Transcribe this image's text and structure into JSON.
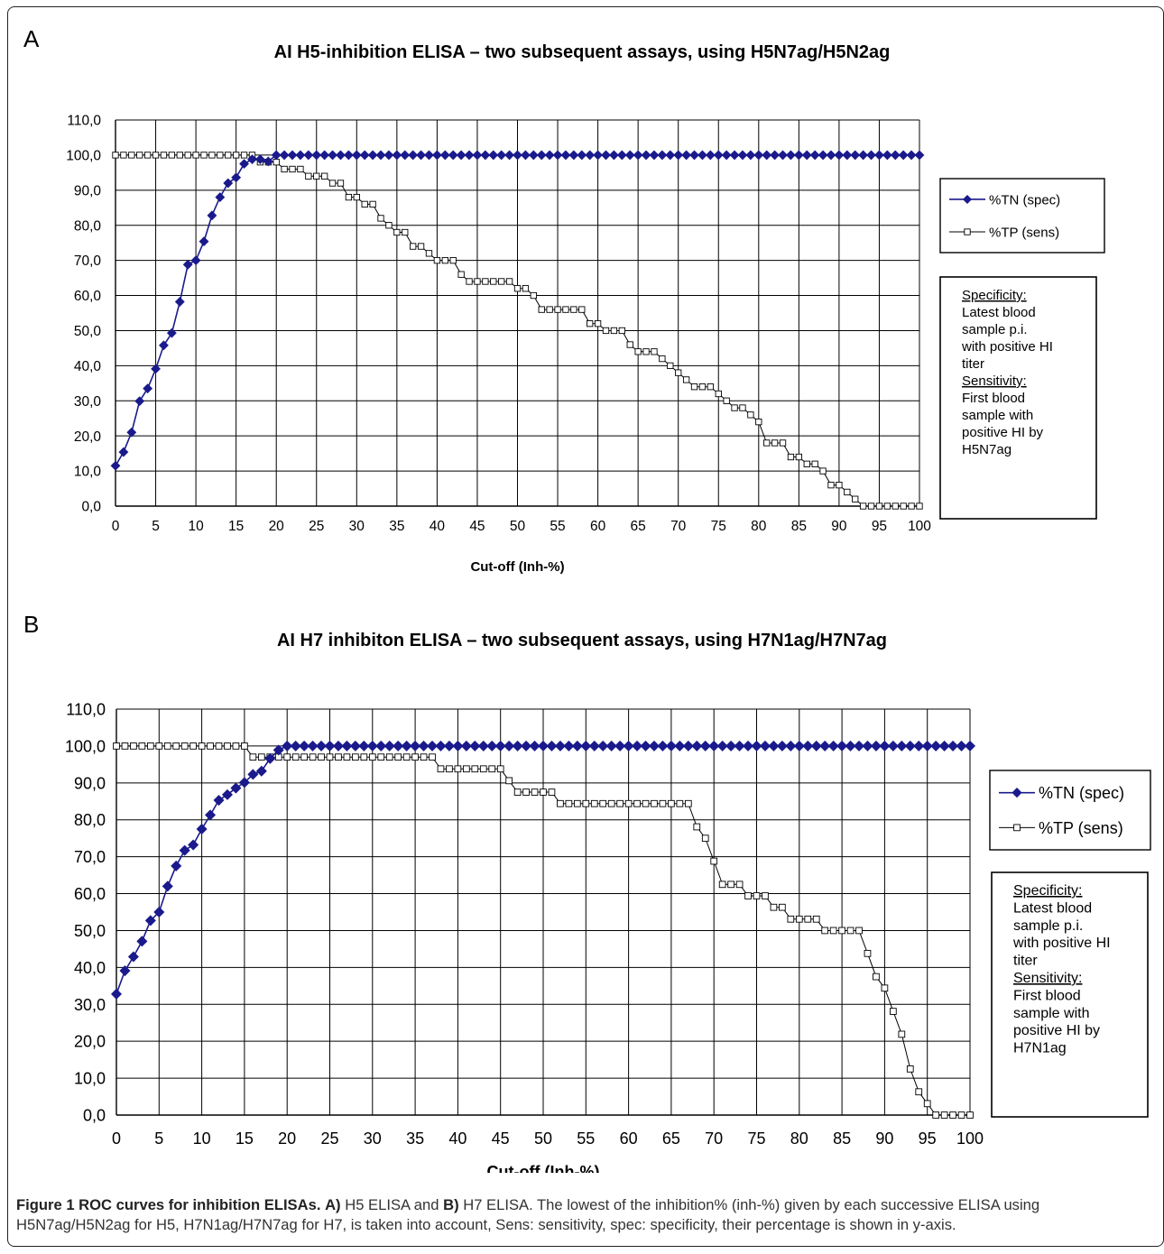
{
  "colors": {
    "tn": "#1a1a8c",
    "tp": "#000000",
    "grid": "#000000",
    "caption_text": "#333333"
  },
  "panels": [
    {
      "letter": "A"
    },
    {
      "letter": "B"
    }
  ],
  "chart_data": [
    {
      "type": "line",
      "title": "AI H5-inhibition ELISA – two subsequent assays, using H5N7ag/H5N2ag",
      "xlabel": "Cut-off (Inh-%)",
      "ylabel": "",
      "xlim": [
        0,
        100
      ],
      "ylim": [
        0,
        110
      ],
      "x_ticks": [
        "0",
        "5",
        "10",
        "15",
        "20",
        "25",
        "30",
        "35",
        "40",
        "45",
        "50",
        "55",
        "60",
        "65",
        "70",
        "75",
        "80",
        "85",
        "90",
        "95",
        "100"
      ],
      "y_ticks": [
        "0,0",
        "10,0",
        "20,0",
        "30,0",
        "40,0",
        "50,0",
        "60,0",
        "70,0",
        "80,0",
        "90,0",
        "100,0",
        "110,0"
      ],
      "grid": true,
      "legend_position": "right",
      "series": [
        {
          "name": "%TN (spec)",
          "marker": "filled-diamond",
          "x": [
            0,
            1,
            2,
            3,
            4,
            5,
            6,
            7,
            8,
            9,
            10,
            11,
            12,
            13,
            14,
            15,
            16,
            17,
            18,
            19,
            20
          ],
          "y": [
            11.5,
            15.4,
            21,
            29.9,
            33.5,
            39.1,
            45.8,
            49.3,
            58.2,
            68.8,
            70,
            75.4,
            82.8,
            88,
            92,
            93.6,
            97.5,
            98.8,
            98.8,
            98.2,
            100
          ],
          "continues_at": 100,
          "continues_to": 100
        },
        {
          "name": "%TP (sens)",
          "marker": "open-square",
          "x": [
            0,
            1,
            2,
            3,
            4,
            5,
            6,
            7,
            8,
            9,
            10,
            11,
            12,
            13,
            14,
            15,
            16,
            17,
            18,
            19,
            20,
            21,
            22,
            23,
            24,
            25,
            26,
            27,
            28,
            29,
            30,
            31,
            32,
            33,
            34,
            35,
            36,
            37,
            38,
            39,
            40,
            41,
            42,
            43,
            44,
            45,
            46,
            47,
            48,
            49,
            50,
            51,
            52,
            53,
            54,
            55,
            56,
            57,
            58,
            59,
            60,
            61,
            62,
            63,
            64,
            65,
            66,
            67,
            68,
            69,
            70,
            71,
            72,
            73,
            74,
            75,
            76,
            77,
            78,
            79,
            80,
            81,
            82,
            83,
            84,
            85,
            86,
            87,
            88,
            89,
            90,
            91,
            92,
            93,
            94,
            95,
            96,
            97,
            98,
            99,
            100
          ],
          "y": [
            100,
            100,
            100,
            100,
            100,
            100,
            100,
            100,
            100,
            100,
            100,
            100,
            100,
            100,
            100,
            100,
            100,
            100,
            98,
            98,
            98,
            96,
            96,
            96,
            94,
            94,
            94,
            92,
            92,
            88,
            88,
            86,
            86,
            82,
            80,
            78,
            78,
            74,
            74,
            72,
            70,
            70,
            70,
            66,
            64,
            64,
            64,
            64,
            64,
            64,
            62,
            62,
            60,
            56,
            56,
            56,
            56,
            56,
            56,
            52,
            52,
            50,
            50,
            50,
            46,
            44,
            44,
            44,
            42,
            40,
            38,
            36,
            34,
            34,
            34,
            32,
            30,
            28,
            28,
            26,
            24,
            18,
            18,
            18,
            14,
            14,
            12,
            12,
            10,
            6,
            6,
            4,
            2,
            0,
            0,
            0,
            0,
            0,
            0,
            0,
            0
          ]
        }
      ],
      "annotation": {
        "spec_head": "Specificity:",
        "spec_lines": [
          "Latest blood",
          "sample p.i.",
          "with positive HI",
          "titer"
        ],
        "sens_head": "Sensitivity:",
        "sens_lines": [
          "First blood",
          "sample with",
          "positive HI by",
          "H5N7ag"
        ]
      }
    },
    {
      "type": "line",
      "title": "AI H7 inhibiton ELISA – two subsequent assays, using H7N1ag/H7N7ag",
      "xlabel": "Cut-off (Inh-%)",
      "ylabel": "",
      "xlim": [
        0,
        100
      ],
      "ylim": [
        0,
        110
      ],
      "x_ticks": [
        "0",
        "5",
        "10",
        "15",
        "20",
        "25",
        "30",
        "35",
        "40",
        "45",
        "50",
        "55",
        "60",
        "65",
        "70",
        "75",
        "80",
        "85",
        "90",
        "95",
        "100"
      ],
      "y_ticks": [
        "0,0",
        "10,0",
        "20,0",
        "30,0",
        "40,0",
        "50,0",
        "60,0",
        "70,0",
        "80,0",
        "90,0",
        "100,0",
        "110,0"
      ],
      "grid": true,
      "legend_position": "right",
      "series": [
        {
          "name": "%TN (spec)",
          "marker": "filled-diamond",
          "x": [
            0,
            1,
            2,
            3,
            4,
            5,
            6,
            7,
            8,
            9,
            10,
            11,
            12,
            13,
            14,
            15,
            16,
            17,
            18,
            19,
            20
          ],
          "y": [
            32.8,
            39.1,
            42.9,
            47.1,
            52.7,
            55,
            62,
            67.5,
            71.7,
            73.2,
            77.5,
            81.3,
            85.3,
            86.8,
            88.6,
            90.1,
            92.3,
            93.2,
            96.6,
            98.9,
            100
          ],
          "continues_at": 100,
          "continues_to": 100
        },
        {
          "name": "%TP (sens)",
          "marker": "open-square",
          "x": [
            0,
            1,
            2,
            3,
            4,
            5,
            6,
            7,
            8,
            9,
            10,
            11,
            12,
            13,
            14,
            15,
            16,
            17,
            18,
            19,
            20,
            21,
            22,
            23,
            24,
            25,
            26,
            27,
            28,
            29,
            30,
            31,
            32,
            33,
            34,
            35,
            36,
            37,
            38,
            39,
            40,
            41,
            42,
            43,
            44,
            45,
            46,
            47,
            48,
            49,
            50,
            51,
            52,
            53,
            54,
            55,
            56,
            57,
            58,
            59,
            60,
            61,
            62,
            63,
            64,
            65,
            66,
            67,
            68,
            69,
            70,
            71,
            72,
            73,
            74,
            75,
            76,
            77,
            78,
            79,
            80,
            81,
            82,
            83,
            84,
            85,
            86,
            87,
            88,
            89,
            90,
            91,
            92,
            93,
            94,
            95,
            96,
            97,
            98,
            99,
            100
          ],
          "y": [
            100,
            100,
            100,
            100,
            100,
            100,
            100,
            100,
            100,
            100,
            100,
            100,
            100,
            100,
            100,
            100,
            97,
            97,
            97,
            97,
            97,
            97,
            97,
            97,
            97,
            97,
            97,
            97,
            97,
            97,
            97,
            97,
            97,
            97,
            97,
            97,
            97,
            97,
            93.8,
            93.8,
            93.8,
            93.8,
            93.8,
            93.8,
            93.8,
            93.8,
            90.6,
            87.5,
            87.5,
            87.5,
            87.5,
            87.5,
            84.4,
            84.4,
            84.4,
            84.4,
            84.4,
            84.4,
            84.4,
            84.4,
            84.4,
            84.4,
            84.4,
            84.4,
            84.4,
            84.4,
            84.4,
            84.4,
            78.1,
            75,
            68.8,
            62.5,
            62.5,
            62.5,
            59.4,
            59.4,
            59.4,
            56.3,
            56.3,
            53.1,
            53.1,
            53.1,
            53.1,
            50,
            50,
            50,
            50,
            50,
            43.8,
            37.5,
            34.4,
            28.1,
            21.9,
            12.5,
            6.3,
            3.1,
            0,
            0,
            0,
            0,
            0
          ]
        }
      ],
      "annotation": {
        "spec_head": "Specificity:",
        "spec_lines": [
          "Latest blood",
          "sample p.i.",
          "with positive HI",
          "titer"
        ],
        "sens_head": "Sensitivity:",
        "sens_lines": [
          "First blood",
          "sample with",
          "positive HI by",
          "H7N1ag"
        ]
      }
    }
  ],
  "caption": {
    "label": "Figure 1 ROC curves for inhibition ELISAs.",
    "a_marker": "A)",
    "a_text": "H5 ELISA and",
    "b_marker": "B)",
    "b_text": "H7 ELISA. The lowest of the inhibition% (inh-%) given by each successive ELISA using H5N7ag/H5N2ag for H5, H7N1ag/H7N7ag for H7, is taken into account, Sens: sensitivity, spec: specificity, their percentage is shown in y-axis."
  }
}
